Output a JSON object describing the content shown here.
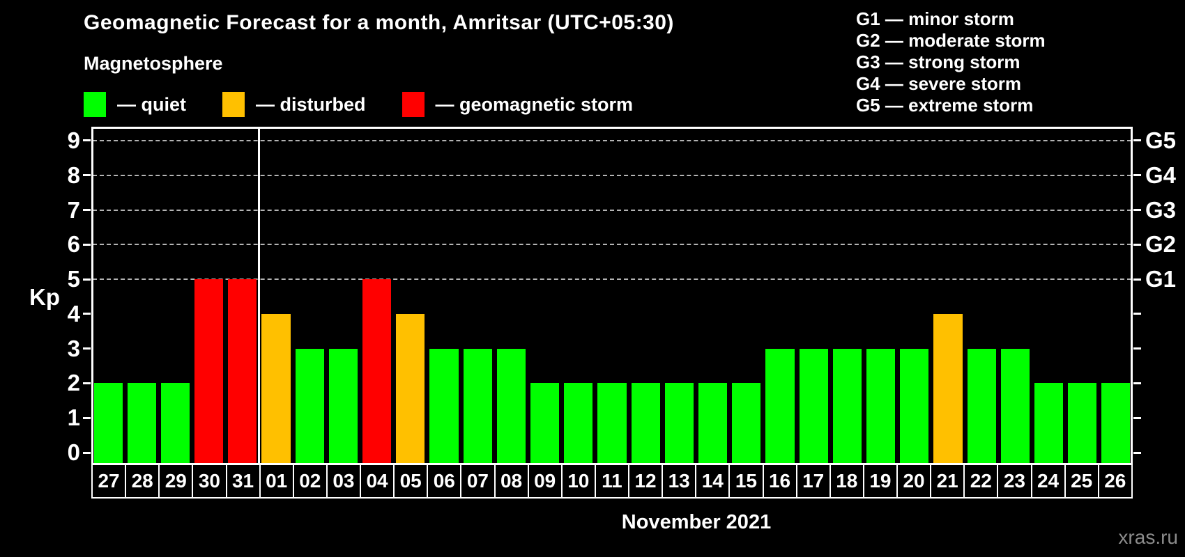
{
  "header": {
    "title": "Geomagnetic Forecast for a month, Amritsar (UTC+05:30)",
    "subtitle": "Magnetosphere"
  },
  "legend": {
    "items": [
      {
        "status": "quiet",
        "label": "— quiet",
        "color": "#00ff00"
      },
      {
        "status": "disturbed",
        "label": "— disturbed",
        "color": "#ffc000"
      },
      {
        "status": "storm",
        "label": "— geomagnetic storm",
        "color": "#ff0000"
      }
    ]
  },
  "g_legend": {
    "items": [
      "G1 — minor storm",
      "G2 — moderate storm",
      "G3 — strong storm",
      "G4 — severe storm",
      "G5 — extreme storm"
    ]
  },
  "chart_data": {
    "type": "bar",
    "title": "Geomagnetic Forecast for a month, Amritsar (UTC+05:30)",
    "ylabel": "Kp",
    "xlabel": "November 2021",
    "ylim": [
      0,
      9
    ],
    "yticks": [
      0,
      1,
      2,
      3,
      4,
      5,
      6,
      7,
      8,
      9
    ],
    "grid": "horizontal dashed lines at Kp 5 through 9",
    "legend_position": "top-left",
    "categories": [
      "27",
      "28",
      "29",
      "30",
      "31",
      "01",
      "02",
      "03",
      "04",
      "05",
      "06",
      "07",
      "08",
      "09",
      "10",
      "11",
      "12",
      "13",
      "14",
      "15",
      "16",
      "17",
      "18",
      "19",
      "20",
      "21",
      "22",
      "23",
      "24",
      "25",
      "26"
    ],
    "values": [
      2,
      2,
      2,
      5,
      5,
      4,
      3,
      3,
      5,
      4,
      3,
      3,
      3,
      2,
      2,
      2,
      2,
      2,
      2,
      2,
      3,
      3,
      3,
      3,
      3,
      4,
      3,
      3,
      2,
      2,
      2
    ],
    "statuses": [
      "quiet",
      "quiet",
      "quiet",
      "storm",
      "storm",
      "disturbed",
      "quiet",
      "quiet",
      "storm",
      "disturbed",
      "quiet",
      "quiet",
      "quiet",
      "quiet",
      "quiet",
      "quiet",
      "quiet",
      "quiet",
      "quiet",
      "quiet",
      "quiet",
      "quiet",
      "quiet",
      "quiet",
      "quiet",
      "disturbed",
      "quiet",
      "quiet",
      "quiet",
      "quiet",
      "quiet"
    ],
    "status_colors": {
      "quiet": "#00ff00",
      "disturbed": "#ffc000",
      "storm": "#ff0000"
    },
    "g_scale": [
      {
        "kp": 5,
        "label": "G1"
      },
      {
        "kp": 6,
        "label": "G2"
      },
      {
        "kp": 7,
        "label": "G3"
      },
      {
        "kp": 8,
        "label": "G4"
      },
      {
        "kp": 9,
        "label": "G5"
      }
    ],
    "month_separator_before_index": 5
  },
  "footer": {
    "caption": "November 2021",
    "watermark": "xras.ru"
  }
}
